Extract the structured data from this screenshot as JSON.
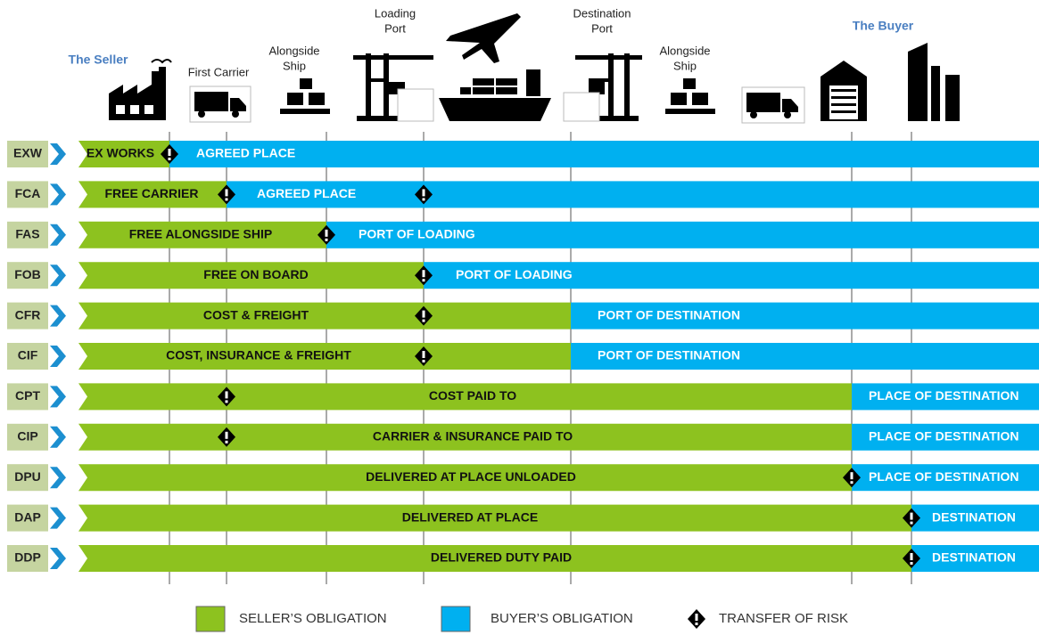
{
  "header": {
    "seller": "The Seller",
    "buyer": "The Buyer",
    "stages": [
      [
        "First Carrier"
      ],
      [
        "Alongside",
        "Ship"
      ],
      [
        "Loading",
        "Port"
      ],
      [
        "Destination",
        "Port"
      ],
      [
        "Alongside",
        "Ship"
      ]
    ]
  },
  "rows": [
    {
      "code": "EXW",
      "seller": "EX WORKS",
      "buyer": "AGREED PLACE"
    },
    {
      "code": "FCA",
      "seller": "FREE CARRIER",
      "buyer": "AGREED PLACE"
    },
    {
      "code": "FAS",
      "seller": "FREE ALONGSIDE SHIP",
      "buyer": "PORT OF LOADING"
    },
    {
      "code": "FOB",
      "seller": "FREE  ON BOARD",
      "buyer": "PORT OF LOADING"
    },
    {
      "code": "CFR",
      "seller": "COST & FREIGHT",
      "buyer": "PORT OF DESTINATION"
    },
    {
      "code": "CIF",
      "seller": "COST, INSURANCE & FREIGHT",
      "buyer": "PORT OF DESTINATION"
    },
    {
      "code": "CPT",
      "seller": "COST PAID TO",
      "buyer": "PLACE OF DESTINATION"
    },
    {
      "code": "CIP",
      "seller": "CARRIER & INSURANCE PAID TO",
      "buyer": "PLACE OF DESTINATION"
    },
    {
      "code": "DPU",
      "seller": "DELIVERED AT PLACE UNLOADED",
      "buyer": "PLACE OF DESTINATION"
    },
    {
      "code": "DAP",
      "seller": "DELIVERED AT PLACE",
      "buyer": "DESTINATION"
    },
    {
      "code": "DDP",
      "seller": "DELIVERED DUTY PAID",
      "buyer": "DESTINATION"
    }
  ],
  "legend": {
    "seller": "SELLER’S OBLIGATION",
    "buyer": "BUYER’S OBLIGATION",
    "risk": "TRANSFER OF RISK"
  }
}
